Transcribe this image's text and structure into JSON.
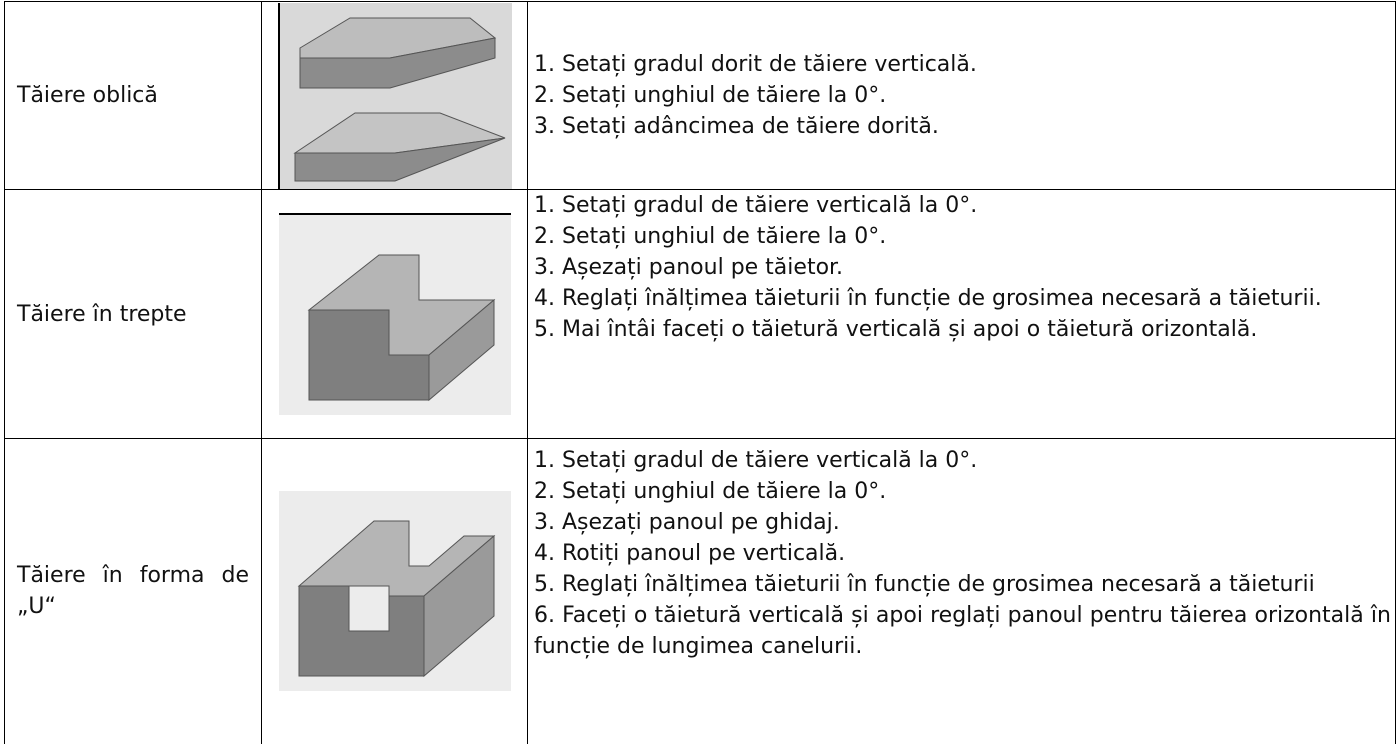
{
  "table": {
    "rows": [
      {
        "label": "Tăiere oblică",
        "steps": [
          "1. Setați gradul dorit de tăiere verticală.",
          "2. Setați unghiul de tăiere la 0°.",
          "3. Setați adâncimea de tăiere dorită."
        ]
      },
      {
        "label": "Tăiere în trepte",
        "steps": [
          "1. Setați gradul de tăiere verticală la 0°.",
          "2. Setați unghiul de tăiere la 0°.",
          "3. Așezați panoul pe tăietor.",
          "4. Reglați înălțimea tăieturii în funcție de grosimea necesară a tăieturii.",
          "5. Mai întâi faceți o tăietură verticală și apoi o tăietură orizontală."
        ]
      },
      {
        "label": "Tăiere în forma de „U“",
        "steps": [
          "1. Setați gradul de tăiere verticală la 0°.",
          "2. Setați unghiul de tăiere la 0°.",
          "3. Așezați panoul pe ghidaj.",
          "4. Rotiți panoul pe verticală.",
          "5. Reglați înălțimea tăieturii în funcție de grosimea necesară a tăieturii",
          "6. Faceți o tăietură verticală și apoi reglați panoul pentru tăierea orizontală în funcție de lungimea canelurii."
        ]
      }
    ]
  }
}
